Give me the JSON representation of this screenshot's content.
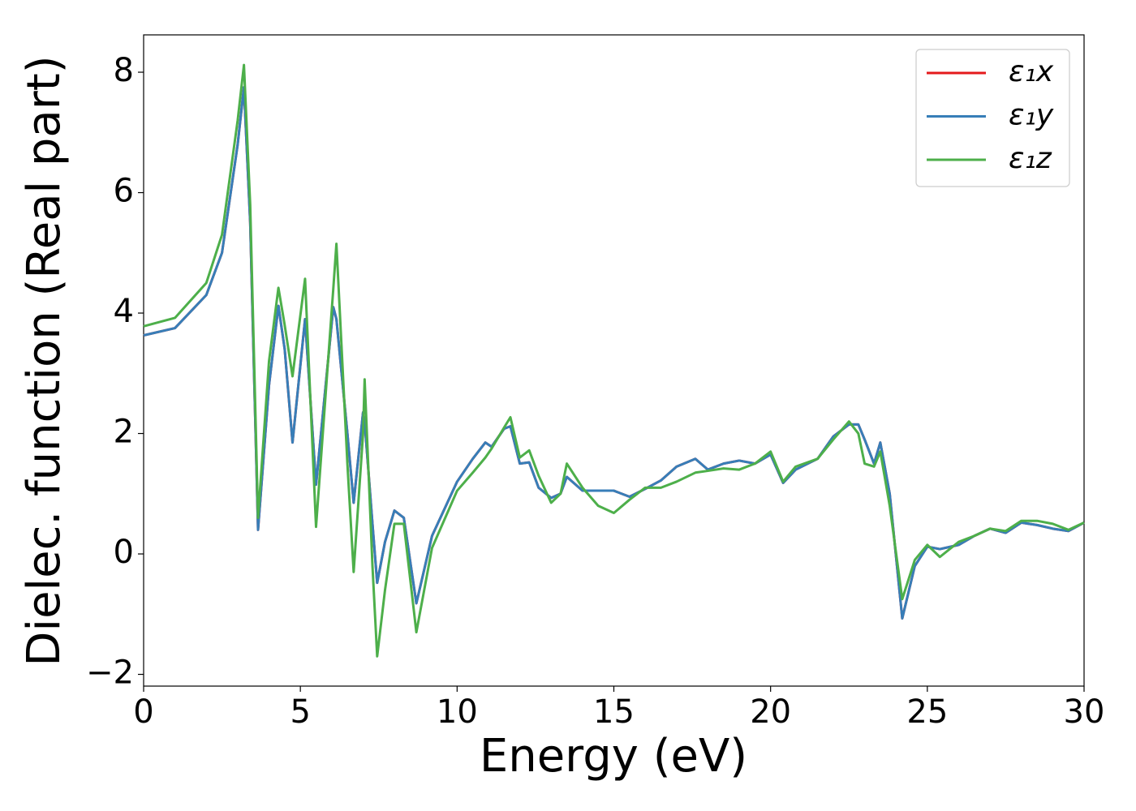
{
  "chart_data": {
    "type": "line",
    "xlabel": "Energy (eV)",
    "ylabel": "Dielec. function (Real part)",
    "x": [
      0,
      1,
      2,
      2.5,
      3.0,
      3.2,
      3.4,
      3.65,
      4.0,
      4.3,
      4.5,
      4.75,
      5.15,
      5.5,
      6.05,
      6.15,
      6.5,
      6.7,
      7.0,
      7.05,
      7.3,
      7.45,
      7.7,
      8.0,
      8.3,
      8.7,
      9.2,
      10.0,
      10.5,
      10.9,
      11.1,
      11.5,
      11.7,
      12.0,
      12.3,
      12.6,
      13.0,
      13.3,
      13.5,
      14.0,
      14.5,
      15.0,
      15.5,
      16.0,
      16.5,
      17.0,
      17.6,
      18.0,
      18.5,
      19.0,
      19.5,
      20.0,
      20.4,
      20.8,
      21.5,
      22.0,
      22.5,
      22.8,
      23.0,
      23.3,
      23.5,
      23.8,
      24.2,
      24.6,
      25.0,
      25.4,
      26.0,
      26.5,
      27.0,
      27.5,
      28.0,
      28.5,
      29.0,
      29.5,
      30.0
    ],
    "series": [
      {
        "name": "ε₁x",
        "color": "#e41a1c",
        "values": [
          3.63,
          3.75,
          4.3,
          5.0,
          6.8,
          7.75,
          5.5,
          0.4,
          2.8,
          4.12,
          3.4,
          1.85,
          3.9,
          1.15,
          4.1,
          3.9,
          2.0,
          0.85,
          2.35,
          2.2,
          0.5,
          -0.48,
          0.2,
          0.72,
          0.6,
          -0.82,
          0.3,
          1.2,
          1.58,
          1.85,
          1.78,
          2.08,
          2.12,
          1.5,
          1.52,
          1.1,
          0.93,
          1.0,
          1.28,
          1.05,
          1.05,
          1.05,
          0.95,
          1.08,
          1.22,
          1.45,
          1.58,
          1.4,
          1.5,
          1.55,
          1.5,
          1.65,
          1.18,
          1.4,
          1.58,
          1.95,
          2.15,
          2.15,
          1.9,
          1.5,
          1.85,
          1.0,
          -1.07,
          -0.2,
          0.12,
          0.08,
          0.15,
          0.3,
          0.42,
          0.35,
          0.52,
          0.48,
          0.42,
          0.38,
          0.52
        ]
      },
      {
        "name": "ε₁y",
        "color": "#377eb8",
        "values": [
          3.63,
          3.75,
          4.3,
          5.0,
          6.8,
          7.75,
          5.5,
          0.4,
          2.8,
          4.12,
          3.4,
          1.85,
          3.9,
          1.15,
          4.1,
          3.9,
          2.0,
          0.85,
          2.35,
          2.2,
          0.5,
          -0.48,
          0.2,
          0.72,
          0.6,
          -0.82,
          0.3,
          1.2,
          1.58,
          1.85,
          1.78,
          2.08,
          2.12,
          1.5,
          1.52,
          1.1,
          0.93,
          1.0,
          1.28,
          1.05,
          1.05,
          1.05,
          0.95,
          1.08,
          1.22,
          1.45,
          1.58,
          1.4,
          1.5,
          1.55,
          1.5,
          1.65,
          1.18,
          1.4,
          1.58,
          1.95,
          2.15,
          2.15,
          1.9,
          1.5,
          1.85,
          1.0,
          -1.07,
          -0.2,
          0.12,
          0.08,
          0.15,
          0.3,
          0.42,
          0.35,
          0.52,
          0.48,
          0.42,
          0.38,
          0.52
        ]
      },
      {
        "name": "ε₁z",
        "color": "#4daf4a",
        "values": [
          3.78,
          3.92,
          4.5,
          5.3,
          7.2,
          8.12,
          5.8,
          0.6,
          3.2,
          4.42,
          3.8,
          2.95,
          4.57,
          0.45,
          4.4,
          5.15,
          1.5,
          -0.3,
          2.0,
          2.9,
          -0.2,
          -1.7,
          -0.6,
          0.5,
          0.5,
          -1.3,
          0.1,
          1.05,
          1.35,
          1.6,
          1.75,
          2.1,
          2.27,
          1.6,
          1.72,
          1.3,
          0.85,
          1.0,
          1.5,
          1.1,
          0.8,
          0.68,
          0.9,
          1.1,
          1.1,
          1.2,
          1.35,
          1.38,
          1.42,
          1.4,
          1.5,
          1.7,
          1.2,
          1.45,
          1.58,
          1.9,
          2.2,
          2.0,
          1.5,
          1.45,
          1.7,
          0.8,
          -0.75,
          -0.1,
          0.15,
          -0.05,
          0.2,
          0.3,
          0.42,
          0.38,
          0.55,
          0.55,
          0.5,
          0.4,
          0.52
        ]
      }
    ],
    "xlim": [
      0,
      30
    ],
    "xticks": [
      0,
      5,
      10,
      15,
      20,
      25,
      30
    ],
    "ylim": [
      -2.195,
      8.62
    ],
    "yticks": [
      {
        "value": -2,
        "label": "−2"
      },
      0,
      2,
      4,
      6,
      8
    ],
    "grid": false,
    "legend": "upper right"
  }
}
